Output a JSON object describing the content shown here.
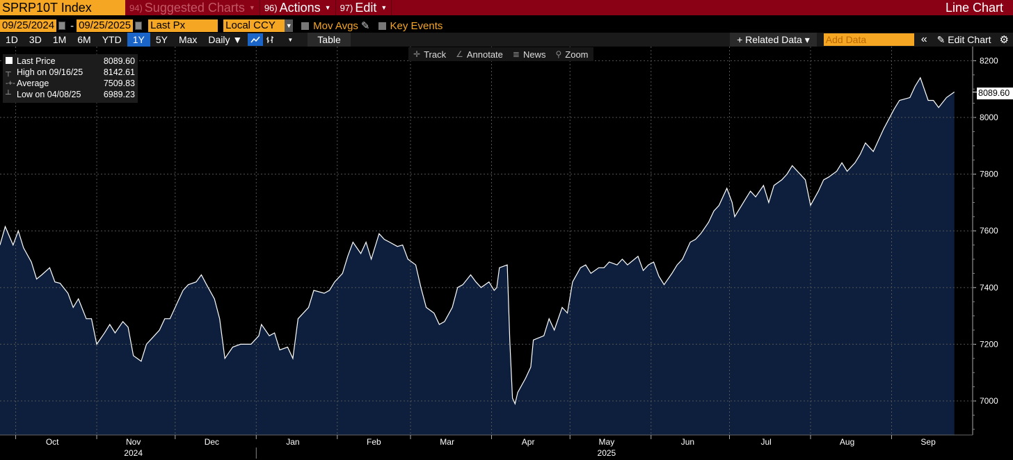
{
  "header": {
    "ticker": "SPRP10T Index",
    "menus": [
      {
        "num": "94)",
        "label": "Suggested Charts",
        "dim": true
      },
      {
        "num": "96)",
        "label": "Actions",
        "dim": false
      },
      {
        "num": "97)",
        "label": "Edit",
        "dim": false
      }
    ],
    "chart_type": "Line Chart"
  },
  "controls": {
    "start_date": "09/25/2024",
    "end_date": "09/25/2025",
    "field": "Last Px",
    "currency": "Local CCY",
    "mov_avgs": "Mov Avgs",
    "key_events": "Key Events"
  },
  "toolbar": {
    "periods": [
      "1D",
      "3D",
      "1M",
      "6M",
      "YTD",
      "1Y",
      "5Y",
      "Max"
    ],
    "active_period": "1Y",
    "frequency": "Daily ▼",
    "table_label": "Table",
    "related_data": "+ Related Data ▾",
    "add_data_placeholder": "Add Data",
    "collapse": "«",
    "edit_chart": "Edit Chart"
  },
  "chart_tools": [
    "Track",
    "Annotate",
    "News",
    "Zoom"
  ],
  "legend": [
    {
      "symbol": "square",
      "label": "Last Price",
      "value": "8089.60"
    },
    {
      "symbol": "T",
      "label": "High on 09/16/25",
      "value": "8142.61"
    },
    {
      "symbol": "-+-",
      "label": "Average",
      "value": "7509.83"
    },
    {
      "symbol": "⊥",
      "label": "Low on 04/08/25",
      "value": "6989.23"
    }
  ],
  "last_price_label": "8089.60",
  "colors": {
    "title_bar": "#8a0015",
    "field": "#f5a623",
    "area_fill": "#0d1f3c",
    "line": "#ffffff",
    "active": "#1b64c8"
  },
  "chart_data": {
    "type": "area",
    "ylim": [
      6880,
      8250
    ],
    "yticks": [
      7000,
      7200,
      7400,
      7600,
      7800,
      8000,
      8200
    ],
    "xlabels": [
      {
        "label": "Oct",
        "date": "2024-10-15"
      },
      {
        "label": "Nov",
        "date": "2024-11-15"
      },
      {
        "label": "Dec",
        "date": "2024-12-15"
      },
      {
        "label": "Jan",
        "date": "2025-01-15"
      },
      {
        "label": "Feb",
        "date": "2025-02-15"
      },
      {
        "label": "Mar",
        "date": "2025-03-15"
      },
      {
        "label": "Apr",
        "date": "2025-04-15"
      },
      {
        "label": "May",
        "date": "2025-05-15"
      },
      {
        "label": "Jun",
        "date": "2025-06-15"
      },
      {
        "label": "Jul",
        "date": "2025-07-15"
      },
      {
        "label": "Aug",
        "date": "2025-08-15"
      },
      {
        "label": "Sep",
        "date": "2025-09-15"
      }
    ],
    "month_starts": [
      "2024-10-01",
      "2024-11-01",
      "2024-12-01",
      "2025-01-01",
      "2025-02-01",
      "2025-03-01",
      "2025-04-01",
      "2025-05-01",
      "2025-06-01",
      "2025-07-01",
      "2025-08-01",
      "2025-09-01"
    ],
    "years": [
      {
        "label": "2024",
        "date": "2024-11-15"
      },
      {
        "label": "2025",
        "date": "2025-05-15"
      }
    ],
    "x_range": [
      "2024-09-25",
      "2025-10-02"
    ],
    "series": [
      {
        "name": "Last Price",
        "points": [
          [
            "2024-09-25",
            7550
          ],
          [
            "2024-09-27",
            7615
          ],
          [
            "2024-09-30",
            7550
          ],
          [
            "2024-10-02",
            7600
          ],
          [
            "2024-10-04",
            7540
          ],
          [
            "2024-10-07",
            7490
          ],
          [
            "2024-10-09",
            7430
          ],
          [
            "2024-10-11",
            7445
          ],
          [
            "2024-10-14",
            7470
          ],
          [
            "2024-10-16",
            7420
          ],
          [
            "2024-10-18",
            7415
          ],
          [
            "2024-10-21",
            7380
          ],
          [
            "2024-10-23",
            7330
          ],
          [
            "2024-10-25",
            7360
          ],
          [
            "2024-10-28",
            7290
          ],
          [
            "2024-10-30",
            7290
          ],
          [
            "2024-11-01",
            7200
          ],
          [
            "2024-11-04",
            7240
          ],
          [
            "2024-11-06",
            7270
          ],
          [
            "2024-11-08",
            7240
          ],
          [
            "2024-11-11",
            7280
          ],
          [
            "2024-11-13",
            7260
          ],
          [
            "2024-11-15",
            7160
          ],
          [
            "2024-11-18",
            7140
          ],
          [
            "2024-11-20",
            7200
          ],
          [
            "2024-11-22",
            7220
          ],
          [
            "2024-11-25",
            7250
          ],
          [
            "2024-11-27",
            7290
          ],
          [
            "2024-11-29",
            7290
          ],
          [
            "2024-12-02",
            7350
          ],
          [
            "2024-12-04",
            7390
          ],
          [
            "2024-12-06",
            7410
          ],
          [
            "2024-12-09",
            7420
          ],
          [
            "2024-12-11",
            7445
          ],
          [
            "2024-12-13",
            7410
          ],
          [
            "2024-12-16",
            7360
          ],
          [
            "2024-12-18",
            7290
          ],
          [
            "2024-12-20",
            7150
          ],
          [
            "2024-12-23",
            7190
          ],
          [
            "2024-12-26",
            7200
          ],
          [
            "2024-12-30",
            7200
          ],
          [
            "2025-01-02",
            7230
          ],
          [
            "2025-01-03",
            7270
          ],
          [
            "2025-01-06",
            7230
          ],
          [
            "2025-01-08",
            7240
          ],
          [
            "2025-01-10",
            7180
          ],
          [
            "2025-01-13",
            7190
          ],
          [
            "2025-01-15",
            7150
          ],
          [
            "2025-01-17",
            7290
          ],
          [
            "2025-01-21",
            7330
          ],
          [
            "2025-01-23",
            7390
          ],
          [
            "2025-01-27",
            7380
          ],
          [
            "2025-01-29",
            7390
          ],
          [
            "2025-01-31",
            7420
          ],
          [
            "2025-02-03",
            7450
          ],
          [
            "2025-02-05",
            7510
          ],
          [
            "2025-02-07",
            7560
          ],
          [
            "2025-02-10",
            7520
          ],
          [
            "2025-02-12",
            7560
          ],
          [
            "2025-02-14",
            7500
          ],
          [
            "2025-02-17",
            7590
          ],
          [
            "2025-02-19",
            7570
          ],
          [
            "2025-02-21",
            7560
          ],
          [
            "2025-02-24",
            7545
          ],
          [
            "2025-02-26",
            7550
          ],
          [
            "2025-02-28",
            7500
          ],
          [
            "2025-03-03",
            7480
          ],
          [
            "2025-03-05",
            7400
          ],
          [
            "2025-03-07",
            7330
          ],
          [
            "2025-03-10",
            7310
          ],
          [
            "2025-03-12",
            7270
          ],
          [
            "2025-03-14",
            7280
          ],
          [
            "2025-03-17",
            7330
          ],
          [
            "2025-03-19",
            7400
          ],
          [
            "2025-03-21",
            7410
          ],
          [
            "2025-03-24",
            7445
          ],
          [
            "2025-03-26",
            7420
          ],
          [
            "2025-03-28",
            7400
          ],
          [
            "2025-03-31",
            7420
          ],
          [
            "2025-04-02",
            7390
          ],
          [
            "2025-04-03",
            7400
          ],
          [
            "2025-04-04",
            7470
          ],
          [
            "2025-04-07",
            7480
          ],
          [
            "2025-04-08",
            7210
          ],
          [
            "2025-04-09",
            7010
          ],
          [
            "2025-04-10",
            6990
          ],
          [
            "2025-04-11",
            7030
          ],
          [
            "2025-04-14",
            7080
          ],
          [
            "2025-04-16",
            7120
          ],
          [
            "2025-04-17",
            7215
          ],
          [
            "2025-04-21",
            7230
          ],
          [
            "2025-04-23",
            7290
          ],
          [
            "2025-04-25",
            7250
          ],
          [
            "2025-04-28",
            7330
          ],
          [
            "2025-04-30",
            7310
          ],
          [
            "2025-05-02",
            7420
          ],
          [
            "2025-05-05",
            7470
          ],
          [
            "2025-05-07",
            7480
          ],
          [
            "2025-05-09",
            7450
          ],
          [
            "2025-05-12",
            7470
          ],
          [
            "2025-05-14",
            7470
          ],
          [
            "2025-05-16",
            7490
          ],
          [
            "2025-05-19",
            7480
          ],
          [
            "2025-05-21",
            7500
          ],
          [
            "2025-05-23",
            7480
          ],
          [
            "2025-05-27",
            7510
          ],
          [
            "2025-05-29",
            7460
          ],
          [
            "2025-05-31",
            7480
          ],
          [
            "2025-06-02",
            7490
          ],
          [
            "2025-06-04",
            7440
          ],
          [
            "2025-06-06",
            7410
          ],
          [
            "2025-06-09",
            7450
          ],
          [
            "2025-06-11",
            7480
          ],
          [
            "2025-06-13",
            7500
          ],
          [
            "2025-06-16",
            7560
          ],
          [
            "2025-06-18",
            7570
          ],
          [
            "2025-06-20",
            7590
          ],
          [
            "2025-06-23",
            7630
          ],
          [
            "2025-06-25",
            7670
          ],
          [
            "2025-06-27",
            7690
          ],
          [
            "2025-06-30",
            7750
          ],
          [
            "2025-07-02",
            7700
          ],
          [
            "2025-07-03",
            7650
          ],
          [
            "2025-07-07",
            7710
          ],
          [
            "2025-07-09",
            7740
          ],
          [
            "2025-07-11",
            7720
          ],
          [
            "2025-07-14",
            7760
          ],
          [
            "2025-07-16",
            7700
          ],
          [
            "2025-07-18",
            7760
          ],
          [
            "2025-07-21",
            7780
          ],
          [
            "2025-07-23",
            7800
          ],
          [
            "2025-07-25",
            7830
          ],
          [
            "2025-07-28",
            7800
          ],
          [
            "2025-07-30",
            7780
          ],
          [
            "2025-08-01",
            7690
          ],
          [
            "2025-08-04",
            7740
          ],
          [
            "2025-08-06",
            7780
          ],
          [
            "2025-08-08",
            7790
          ],
          [
            "2025-08-11",
            7810
          ],
          [
            "2025-08-13",
            7840
          ],
          [
            "2025-08-15",
            7810
          ],
          [
            "2025-08-18",
            7840
          ],
          [
            "2025-08-20",
            7870
          ],
          [
            "2025-08-22",
            7910
          ],
          [
            "2025-08-25",
            7880
          ],
          [
            "2025-08-27",
            7920
          ],
          [
            "2025-08-29",
            7960
          ],
          [
            "2025-09-02",
            8030
          ],
          [
            "2025-09-04",
            8060
          ],
          [
            "2025-09-08",
            8070
          ],
          [
            "2025-09-10",
            8110
          ],
          [
            "2025-09-12",
            8140
          ],
          [
            "2025-09-15",
            8060
          ],
          [
            "2025-09-17",
            8060
          ],
          [
            "2025-09-19",
            8035
          ],
          [
            "2025-09-22",
            8070
          ],
          [
            "2025-09-25",
            8089.6
          ]
        ]
      }
    ]
  }
}
